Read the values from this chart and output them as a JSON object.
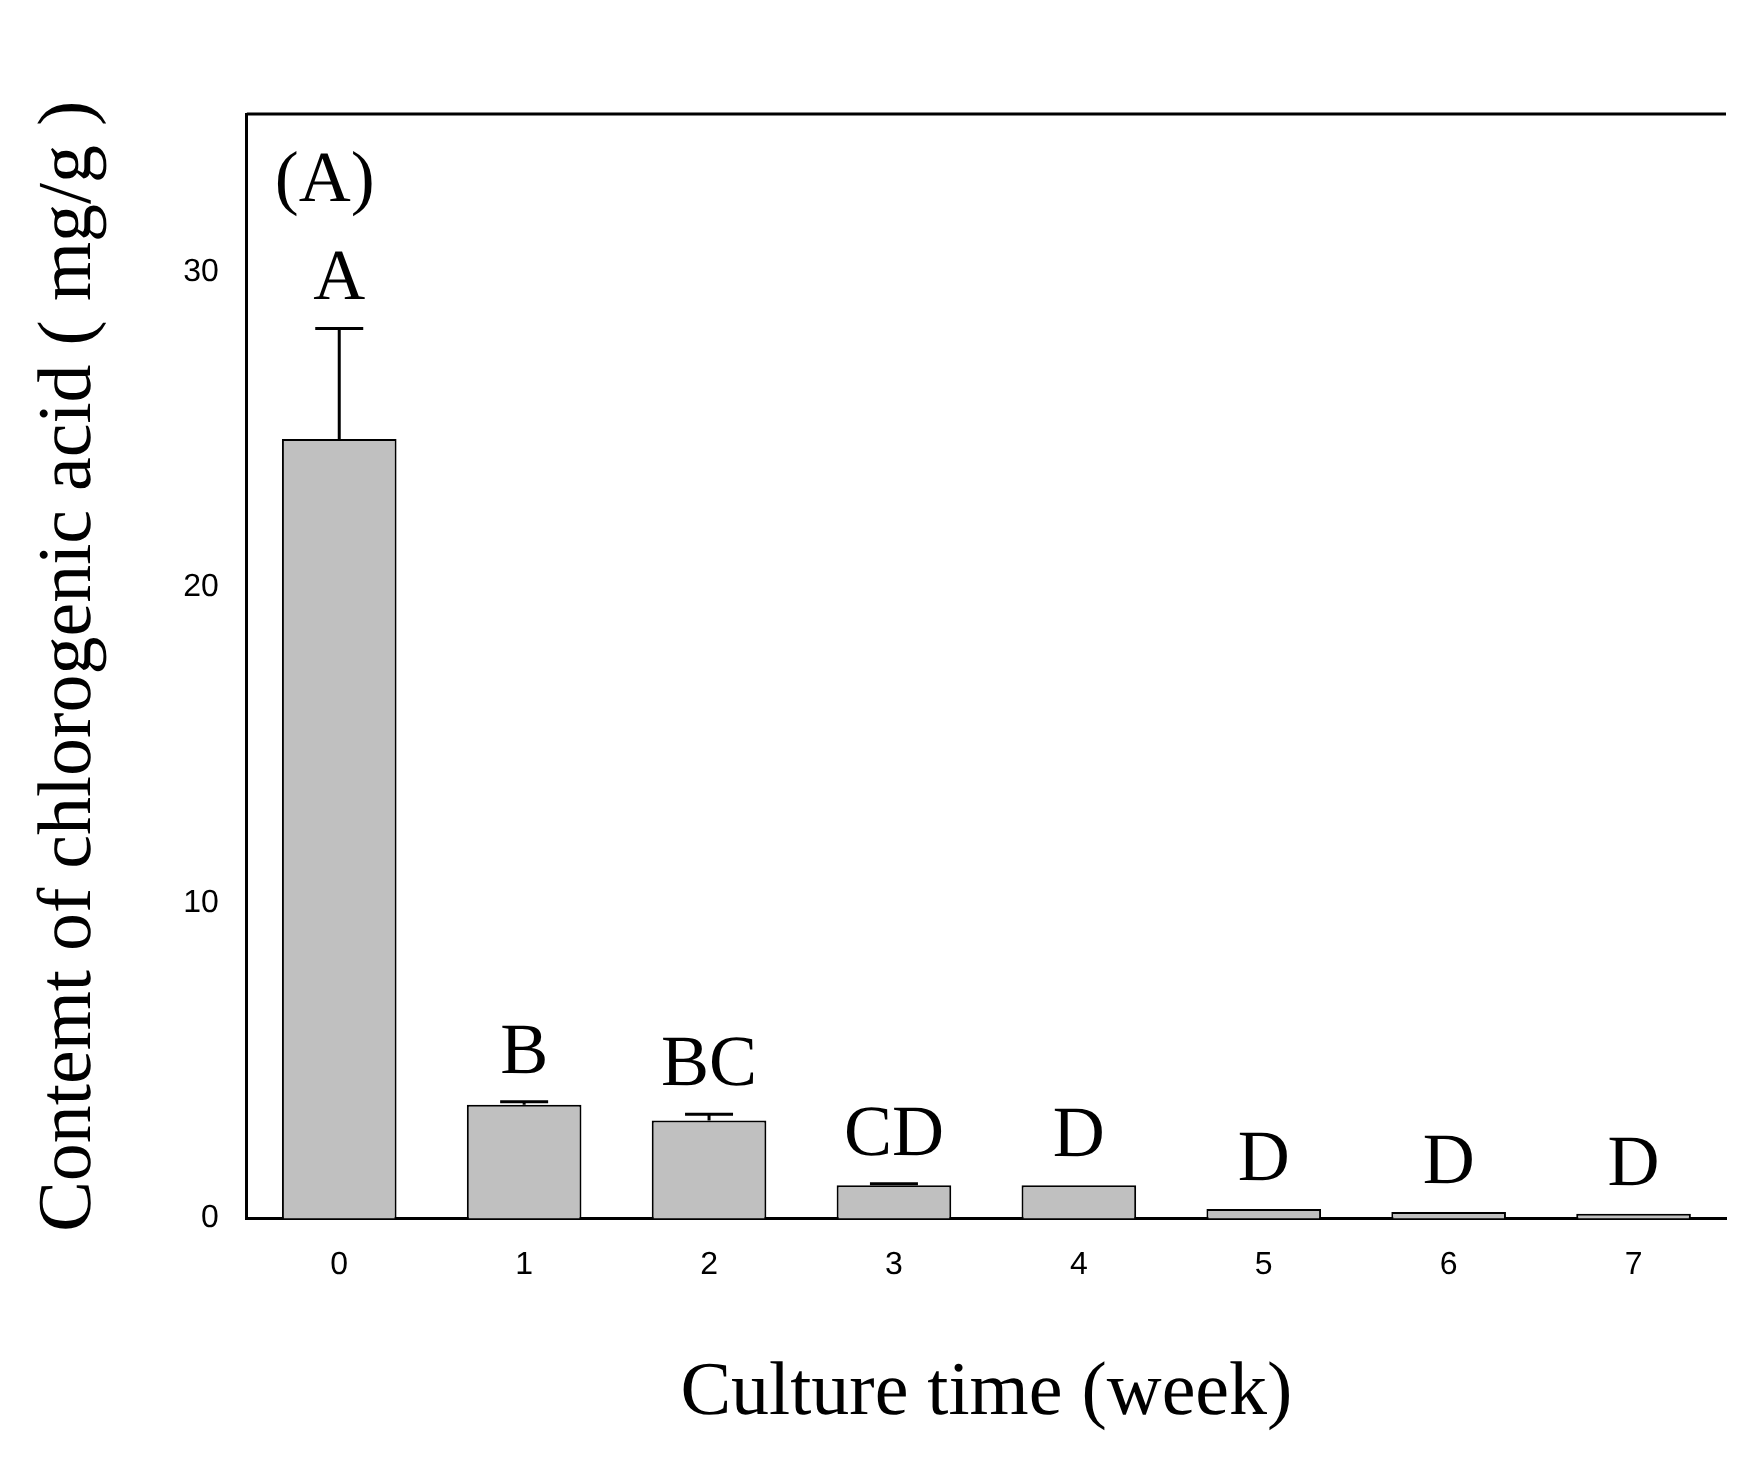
{
  "chart_data": {
    "type": "bar",
    "xlabel": "Culture time (week)",
    "ylabel": "Contemt of chlorogenic acid ( mg/g )",
    "categories": [
      "0",
      "1",
      "2",
      "3",
      "4",
      "5",
      "6",
      "7"
    ],
    "values": [
      24.7,
      3.6,
      3.1,
      1.05,
      1.05,
      0.3,
      0.2,
      0.15
    ],
    "errors": [
      3.5,
      0.1,
      0.2,
      0.05,
      null,
      null,
      null,
      null
    ],
    "color": "#c0c0c0",
    "ylim": [
      0,
      35
    ],
    "yticks": [
      0,
      10,
      20,
      30
    ],
    "grid": false,
    "legend": false,
    "annotations": [
      "(A)",
      {
        "text": "A",
        "x": "0",
        "y": 28.2
      },
      {
        "text": "B",
        "x": "1",
        "y": 3.7
      },
      {
        "text": "BC",
        "x": "2",
        "y": 3.3
      },
      {
        "text": "CD",
        "x": "3",
        "y": 1.1
      },
      {
        "text": "D",
        "x": "4",
        "y": 1.05
      },
      {
        "text": "D",
        "x": "5",
        "y": 0.3
      },
      {
        "text": "D",
        "x": "6",
        "y": 0.2
      },
      {
        "text": "D",
        "x": "7",
        "y": 0.15
      }
    ]
  }
}
